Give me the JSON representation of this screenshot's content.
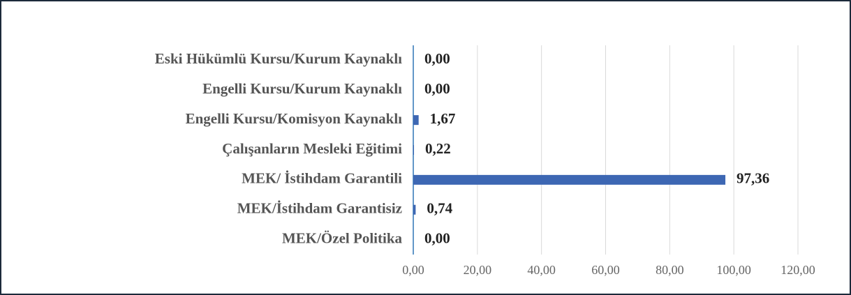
{
  "chart_data": {
    "type": "barh",
    "categories": [
      "Eski Hükümlü Kursu/Kurum Kaynaklı",
      "Engelli Kursu/Kurum Kaynaklı",
      "Engelli Kursu/Komisyon Kaynaklı",
      "Çalışanların Mesleki Eğitimi",
      "MEK/ İstihdam Garantili",
      "MEK/İstihdam Garantisiz",
      "MEK/Özel Politika"
    ],
    "values": [
      0,
      0,
      1.67,
      0.22,
      97.36,
      0.74,
      0
    ],
    "value_labels": [
      "0,00",
      "0,00",
      "1,67",
      "0,22",
      "97,36",
      "0,74",
      "0,00"
    ],
    "color": "#3d67b3",
    "xlim": [
      0,
      120
    ],
    "xticks": [
      {
        "value": 0,
        "label": "0,00"
      },
      {
        "value": 20,
        "label": "20,00"
      },
      {
        "value": 40,
        "label": "40,00"
      },
      {
        "value": 60,
        "label": "60,00"
      },
      {
        "value": 80,
        "label": "80,00"
      },
      {
        "value": 100,
        "label": "100,00"
      },
      {
        "value": 120,
        "label": "120,00"
      }
    ],
    "grid": true
  }
}
